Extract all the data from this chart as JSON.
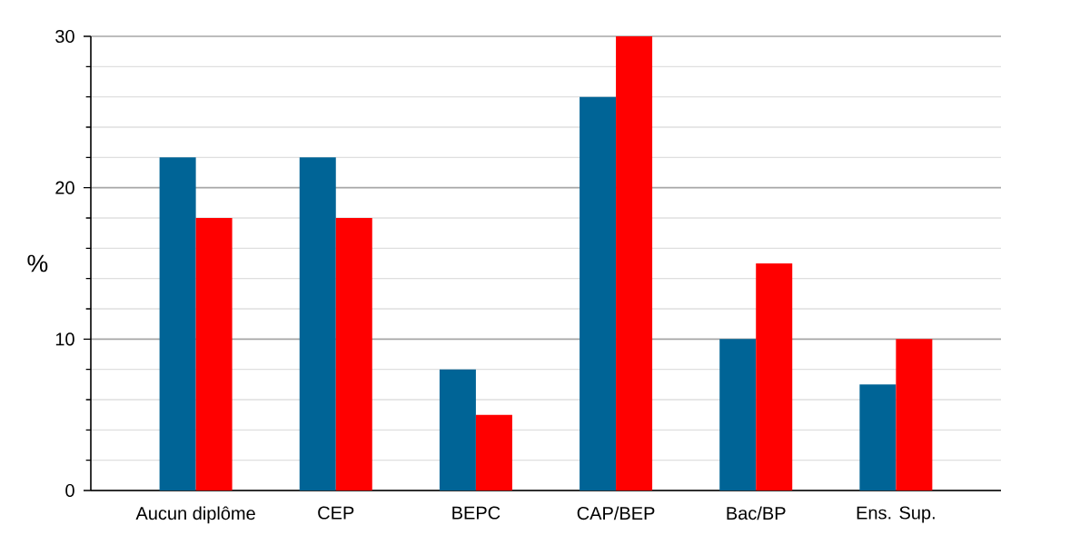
{
  "chart_data": {
    "type": "bar",
    "ylabel": "%",
    "categories": [
      "Aucun diplôme",
      "CEP",
      "BEPC",
      "CAP/BEP",
      "Bac/BP",
      "Ens. Sup."
    ],
    "series": [
      {
        "color": "#006496",
        "values": [
          22,
          22,
          8,
          26,
          10,
          7
        ]
      },
      {
        "color": "#ff0000",
        "values": [
          18,
          18,
          5,
          30,
          15,
          10
        ]
      }
    ],
    "ylim": [
      0,
      30
    ],
    "yticks": [
      0,
      10,
      20,
      30
    ],
    "grid": "y",
    "legend": false
  }
}
